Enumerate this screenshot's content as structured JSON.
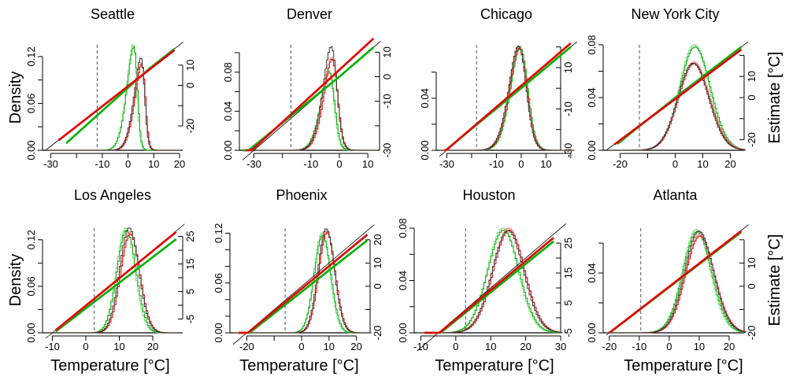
{
  "figure": {
    "xlabel": "Temperature [°C]",
    "ylabel_left": "Density",
    "ylabel_right": "Estimate [°C]"
  },
  "colors": {
    "observed": "#000000",
    "model_red": "#e00000",
    "model_red_light": "#ff8080",
    "model_green": "#00b000",
    "model_green_light": "#80e080",
    "reference_line": "#000000",
    "threshold_line": "#555555"
  },
  "chart_data": [
    {
      "type": "histogram+qq",
      "title": "Seattle",
      "xlim": [
        -32,
        20
      ],
      "xticks": [
        -30,
        -20,
        -10,
        0,
        10,
        20
      ],
      "xticklabels": [
        "-30",
        "",
        "-10",
        "0",
        "10",
        "20"
      ],
      "density_lim": [
        0,
        0.135
      ],
      "density_ticks": [
        0,
        0.03,
        0.06,
        0.09,
        0.12
      ],
      "density_ticklabels": [
        "0.00",
        "",
        "0.06",
        "",
        "0.12"
      ],
      "est_lim": [
        -32,
        20
      ],
      "est_ticks": [
        -20,
        -10,
        0,
        10
      ],
      "est_ticklabels": [
        "-20",
        "",
        "0",
        "10"
      ],
      "threshold": -12,
      "hist": {
        "mean": 6.5,
        "sd": 3.5,
        "skew": -3.2,
        "peak_black": 0.118,
        "peak_red": 0.112,
        "green_shift": -3.0,
        "peak_green": 0.135
      },
      "qq": {
        "x_start": -27,
        "x_end": 18,
        "red_offset": -0.5,
        "green_offset": -4.5,
        "green_converge": 8,
        "low_tail_red": -27,
        "low_tail_green": -24
      }
    },
    {
      "type": "histogram+qq",
      "title": "Denver",
      "xlim": [
        -34,
        13
      ],
      "xticks": [
        -30,
        -20,
        -10,
        0,
        10
      ],
      "xticklabels": [
        "-30",
        "",
        "-10",
        "0",
        "10"
      ],
      "density_lim": [
        0,
        0.108
      ],
      "density_ticks": [
        0,
        0.02,
        0.04,
        0.06,
        0.08,
        0.1
      ],
      "density_ticklabels": [
        "0.00",
        "",
        "0.04",
        "",
        "0.08",
        ""
      ],
      "est_lim": [
        -30,
        13
      ],
      "est_ticks": [
        -30,
        -20,
        -10,
        0,
        10
      ],
      "est_ticklabels": [
        "-30",
        "",
        "-10",
        "0",
        "10"
      ],
      "threshold": -17,
      "hist": {
        "mean": -1.0,
        "sd": 3.8,
        "skew": -2.2,
        "peak_black": 0.106,
        "peak_red": 0.095,
        "green_shift": -1.0,
        "peak_green": 0.082
      },
      "qq": {
        "x_start": -33,
        "x_end": 12,
        "red_offset": 3.0,
        "green_offset": 2.0,
        "green_converge": 0,
        "low_tail_red": -33,
        "low_tail_green": -34
      }
    },
    {
      "type": "histogram+qq",
      "title": "Chicago",
      "xlim": [
        -33,
        21
      ],
      "xticks": [
        -30,
        -20,
        -10,
        0,
        10,
        20
      ],
      "xticklabels": [
        "-30",
        "",
        "-10",
        "0",
        "10",
        ""
      ],
      "density_lim": [
        0,
        0.081
      ],
      "density_ticks": [
        0,
        0.02,
        0.04,
        0.06
      ],
      "density_ticklabels": [
        "0.00",
        "",
        "0.04",
        ""
      ],
      "est_lim": [
        -30,
        21
      ],
      "est_ticks": [
        -30,
        -20,
        -10,
        0,
        10,
        20
      ],
      "est_ticklabels": [
        "-30",
        "",
        "-10",
        "",
        "10",
        ""
      ],
      "threshold": -18,
      "hist": {
        "mean": 1.5,
        "sd": 5.0,
        "skew": -1.6,
        "peak_black": 0.08,
        "peak_red": 0.08,
        "green_shift": 0.5,
        "peak_green": 0.08
      },
      "qq": {
        "x_start": -32,
        "x_end": 20,
        "red_offset": 1.5,
        "green_offset": 0.5,
        "green_converge": 4,
        "low_tail_red": -31,
        "low_tail_green": -31
      }
    },
    {
      "type": "histogram+qq",
      "title": "New York City",
      "xlim": [
        -25,
        25
      ],
      "xticks": [
        -20,
        -10,
        0,
        10,
        20
      ],
      "xticklabels": [
        "-20",
        "",
        "0",
        "10",
        "20"
      ],
      "density_lim": [
        0,
        0.08
      ],
      "density_ticks": [
        0,
        0.02,
        0.04,
        0.06,
        0.08
      ],
      "density_ticklabels": [
        "0.00",
        "",
        "0.04",
        "",
        "0.08"
      ],
      "est_lim": [
        -25,
        25
      ],
      "est_ticks": [
        -20,
        -10,
        0,
        10,
        20
      ],
      "est_ticklabels": [
        "-20",
        "",
        "0",
        "10",
        ""
      ],
      "threshold": -13,
      "hist": {
        "mean": 4.0,
        "sd": 6.2,
        "skew": 0.6,
        "peak_black": 0.066,
        "peak_red": 0.067,
        "green_shift": 0.5,
        "peak_green": 0.08
      },
      "qq": {
        "x_start": -22,
        "x_end": 24,
        "red_offset": -1.0,
        "green_offset": -1.0,
        "green_converge": 2,
        "low_tail_red": -22,
        "low_tail_green": -21
      }
    },
    {
      "type": "histogram+qq",
      "title": "Los Angeles",
      "xlim": [
        -12,
        28
      ],
      "xticks": [
        -10,
        0,
        10,
        20
      ],
      "xticklabels": [
        "-10",
        "0",
        "10",
        "20"
      ],
      "density_lim": [
        0,
        0.135
      ],
      "density_ticks": [
        0,
        0.03,
        0.06,
        0.09,
        0.12
      ],
      "density_ticklabels": [
        "0.00",
        "",
        "0.06",
        "",
        "0.12"
      ],
      "est_lim": [
        -10,
        28
      ],
      "est_ticks": [
        -5,
        0,
        5,
        10,
        15,
        20,
        25
      ],
      "est_ticklabels": [
        "-5",
        "",
        "5",
        "",
        "15",
        "",
        "25"
      ],
      "threshold": 2.5,
      "hist": {
        "mean": 12.5,
        "sd": 2.9,
        "skew": 0.2,
        "peak_black": 0.135,
        "peak_red": 0.13,
        "green_shift": -1.0,
        "peak_green": 0.135
      },
      "qq": {
        "x_start": -9,
        "x_end": 27,
        "red_offset": -0.3,
        "green_offset": -2.5,
        "green_converge": 40,
        "low_tail_red": -9,
        "low_tail_green": -9
      }
    },
    {
      "type": "histogram+qq",
      "title": "Phoenix",
      "xlim": [
        -25,
        25
      ],
      "xticks": [
        -20,
        -10,
        0,
        10,
        20
      ],
      "xticklabels": [
        "-20",
        "",
        "0",
        "10",
        "20"
      ],
      "density_lim": [
        0,
        0.126
      ],
      "density_ticks": [
        0,
        0.02,
        0.04,
        0.06,
        0.08,
        0.1,
        0.12
      ],
      "density_ticklabels": [
        "0.00",
        "",
        "",
        "0.06",
        "",
        "",
        "0.12"
      ],
      "est_lim": [
        -20,
        25
      ],
      "est_ticks": [
        -20,
        -10,
        0,
        10,
        20
      ],
      "est_ticklabels": [
        "-20",
        "",
        "0",
        "10",
        "20"
      ],
      "threshold": -6,
      "hist": {
        "mean": 9.0,
        "sd": 3.0,
        "skew": 0.0,
        "peak_black": 0.125,
        "peak_red": 0.123,
        "green_shift": -1.5,
        "peak_green": 0.12
      },
      "qq": {
        "x_start": -23,
        "x_end": 24,
        "red_offset": -1.5,
        "green_offset": -3.5,
        "green_converge": 40,
        "low_tail_red": -23,
        "low_tail_green": -23
      }
    },
    {
      "type": "histogram+qq",
      "title": "Houston",
      "xlim": [
        -11,
        30
      ],
      "xticks": [
        -10,
        0,
        10,
        20,
        30
      ],
      "xticklabels": [
        "-10",
        "0",
        "10",
        "20",
        "30"
      ],
      "density_lim": [
        0,
        0.08
      ],
      "density_ticks": [
        0,
        0.02,
        0.04,
        0.06,
        0.08
      ],
      "density_ticklabels": [
        "0.00",
        "",
        "0.04",
        "",
        "0.08"
      ],
      "est_lim": [
        -5,
        30
      ],
      "est_ticks": [
        -5,
        0,
        5,
        10,
        15,
        20,
        25
      ],
      "est_ticklabels": [
        "-5",
        "",
        "5",
        "",
        "15",
        "",
        "25"
      ],
      "threshold": 2.8,
      "hist": {
        "mean": 17.0,
        "sd": 5.0,
        "skew": -0.6,
        "peak_black": 0.078,
        "peak_red": 0.08,
        "green_shift": -1.5,
        "peak_green": 0.08
      },
      "qq": {
        "x_start": -9,
        "x_end": 28,
        "red_offset": -1.0,
        "green_offset": -2.0,
        "green_converge": 40,
        "low_tail_red": -9,
        "low_tail_green": -9
      }
    },
    {
      "type": "histogram+qq",
      "title": "Atlanta",
      "xlim": [
        -21,
        25
      ],
      "xticks": [
        -20,
        -10,
        0,
        10,
        20
      ],
      "xticklabels": [
        "-20",
        "-10",
        "0",
        "10",
        "20"
      ],
      "density_lim": [
        0,
        0.07
      ],
      "density_ticks": [
        0,
        0.02,
        0.04,
        0.06
      ],
      "density_ticklabels": [
        "0.00",
        "",
        "0.04",
        ""
      ],
      "est_lim": [
        -20,
        25
      ],
      "est_ticks": [
        -20,
        -10,
        0,
        10,
        20
      ],
      "est_ticklabels": [
        "-20",
        "",
        "0",
        "10",
        ""
      ],
      "threshold": -9.5,
      "hist": {
        "mean": 7.5,
        "sd": 5.5,
        "skew": 0.7,
        "peak_black": 0.068,
        "peak_red": 0.066,
        "green_shift": -0.8,
        "peak_green": 0.069
      },
      "qq": {
        "x_start": -20,
        "x_end": 24,
        "red_offset": -0.2,
        "green_offset": -0.6,
        "green_converge": 40,
        "low_tail_red": -20,
        "low_tail_green": -20
      }
    }
  ]
}
